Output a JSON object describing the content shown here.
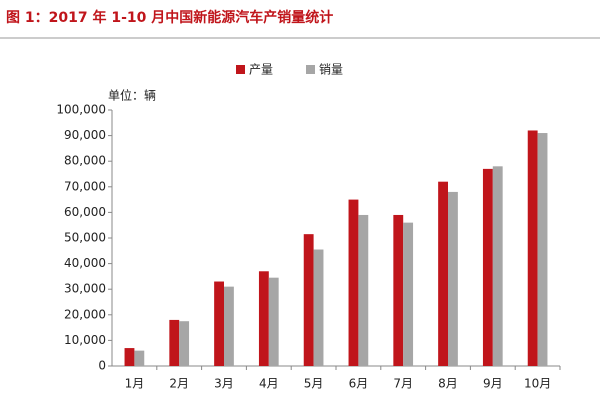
{
  "chart_data": {
    "type": "bar",
    "title": "图 1：2017 年 1-10 月中国新能源汽车产销量统计",
    "unit_label": "单位：辆",
    "categories": [
      "1月",
      "2月",
      "3月",
      "4月",
      "5月",
      "6月",
      "7月",
      "8月",
      "9月",
      "10月"
    ],
    "series": [
      {
        "name": "产量",
        "color": "#c0151b",
        "values": [
          7000,
          18000,
          33000,
          37000,
          51500,
          65000,
          59000,
          72000,
          77000,
          92000
        ]
      },
      {
        "name": "销量",
        "color": "#a6a6a6",
        "values": [
          6000,
          17500,
          31000,
          34500,
          45500,
          59000,
          56000,
          68000,
          78000,
          91000
        ]
      }
    ],
    "ylim": [
      0,
      100000
    ],
    "yticks": [
      0,
      {
        "value": 10000,
        "label": "10,000"
      },
      {
        "value": 20000,
        "label": "20,000"
      },
      {
        "value": 30000,
        "label": "30,000"
      },
      {
        "value": 40000,
        "label": "40,000"
      },
      {
        "value": 50000,
        "label": "50,000"
      },
      {
        "value": 60000,
        "label": "60,000"
      },
      {
        "value": 70000,
        "label": "70,000"
      },
      {
        "value": 80000,
        "label": "80,000"
      },
      {
        "value": 90000,
        "label": "90,000"
      },
      {
        "value": 100000,
        "label": "100,000"
      }
    ],
    "grid": false,
    "legend": "top"
  }
}
